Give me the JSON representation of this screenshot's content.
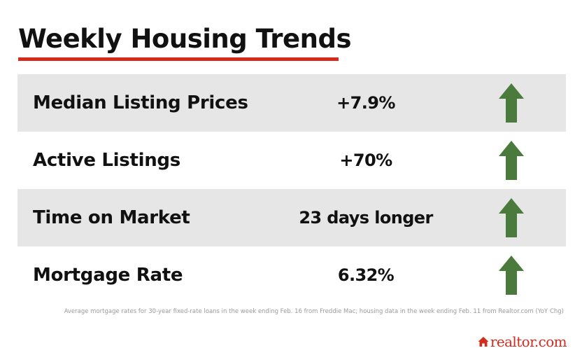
{
  "title": "Weekly Housing Trends",
  "colors": {
    "accent_red": "#d52b1e",
    "arrow_green": "#4a7a3c",
    "row_shade": "#e6e6e6"
  },
  "rows": [
    {
      "label": "Median Listing Prices",
      "value": "+7.9%",
      "trend": "up",
      "icon": "arrow-up-icon"
    },
    {
      "label": "Active Listings",
      "value": "+70%",
      "trend": "up",
      "icon": "arrow-up-icon"
    },
    {
      "label": "Time on Market",
      "value": "23 days longer",
      "trend": "up",
      "icon": "arrow-up-icon"
    },
    {
      "label": "Mortgage Rate",
      "value": "6.32%",
      "trend": "up",
      "icon": "arrow-up-icon"
    }
  ],
  "footnote": "Average mortgage rates for 30-year fixed-rate loans in the week ending Feb. 16 from Freddie Mac; housing data in the week ending Feb. 11 from Realtor.com (YoY Chg)",
  "brand": {
    "name": "realtor.com",
    "icon": "house-icon"
  }
}
